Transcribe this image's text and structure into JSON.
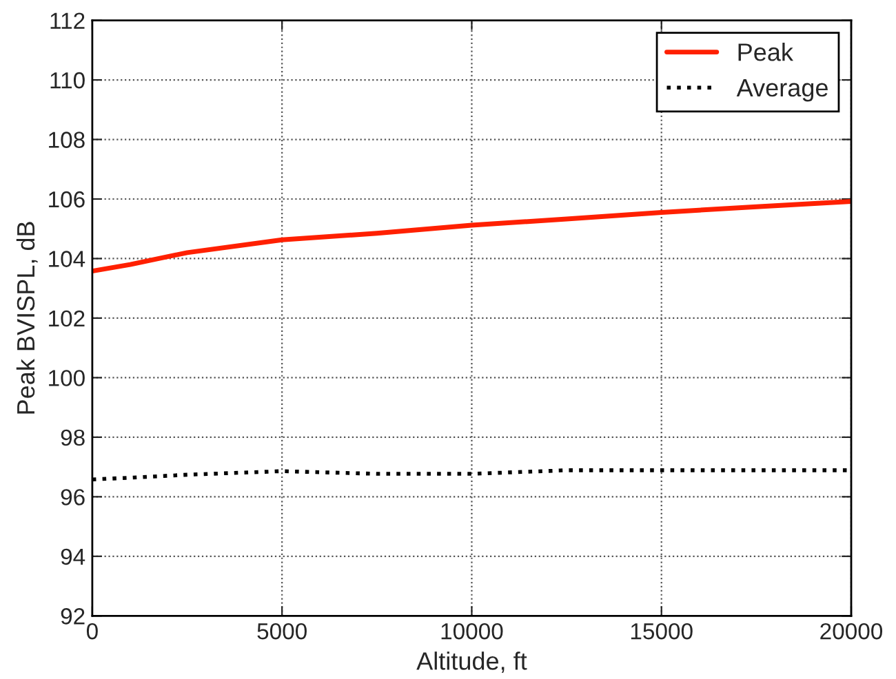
{
  "chart_data": {
    "type": "line",
    "xlabel": "Altitude, ft",
    "ylabel": "Peak BVISPL, dB",
    "x": [
      0,
      1000,
      2500,
      5000,
      7500,
      10000,
      12500,
      15000,
      17500,
      20000
    ],
    "series": [
      {
        "name": "Peak",
        "color": "#ff2000",
        "line_style": "solid",
        "values": [
          103.58,
          103.8,
          104.2,
          104.63,
          104.85,
          105.12,
          105.33,
          105.55,
          105.74,
          105.92
        ]
      },
      {
        "name": "Average",
        "color": "#000000",
        "line_style": "dotted",
        "values": [
          96.58,
          96.64,
          96.74,
          96.86,
          96.77,
          96.77,
          96.89,
          96.89,
          96.89,
          96.89
        ]
      }
    ],
    "xlim": [
      0,
      20000
    ],
    "ylim": [
      92,
      112
    ],
    "xticks": [
      0,
      5000,
      10000,
      15000,
      20000
    ],
    "yticks": [
      92,
      94,
      96,
      98,
      100,
      102,
      104,
      106,
      108,
      110,
      112
    ],
    "grid": true,
    "legend": "top right"
  }
}
